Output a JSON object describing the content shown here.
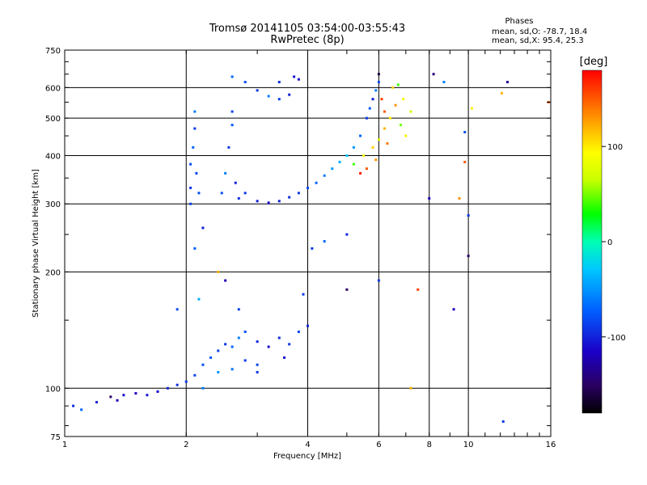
{
  "chart_data": {
    "type": "scatter",
    "title": "Tromsø 20141105 03:54:00-03:55:43",
    "subtitle": "RwPretec (8p)",
    "xlabel": "Frequency [MHz]",
    "ylabel": "Stationary phase Virtual Height [km]",
    "x_scale": "log",
    "y_scale": "log",
    "xlim": [
      1,
      16
    ],
    "ylim": [
      75,
      750
    ],
    "x_ticks": [
      1,
      2,
      4,
      6,
      8,
      10,
      16
    ],
    "x_tick_labels": [
      "1",
      "2",
      "4",
      "6",
      "8",
      "10",
      "16"
    ],
    "y_ticks": [
      75,
      100,
      200,
      300,
      400,
      500,
      600,
      750
    ],
    "y_tick_labels": [
      "75",
      "100",
      "200",
      "300",
      "400",
      "500",
      "600",
      "750"
    ],
    "grid": true,
    "stats": {
      "title": "Phases",
      "line_o": "mean, sd,O: -78.7, 18.4",
      "line_x": "mean, sd,X:  95.4, 25.3"
    },
    "colorbar": {
      "label": "[deg]",
      "range": [
        -180,
        180
      ],
      "ticks": [
        100,
        0,
        -100
      ],
      "tick_labels": [
        "100",
        "0",
        "-100"
      ]
    },
    "series": [
      {
        "note_type": "points",
        "points": [
          [
            1.05,
            90,
            -95
          ],
          [
            1.1,
            88,
            -70
          ],
          [
            1.2,
            92,
            -100
          ],
          [
            1.3,
            95,
            -150
          ],
          [
            1.35,
            93,
            -120
          ],
          [
            1.4,
            96,
            -110
          ],
          [
            1.5,
            97,
            -115
          ],
          [
            1.6,
            96,
            -105
          ],
          [
            1.7,
            98,
            -110
          ],
          [
            1.8,
            100,
            -100
          ],
          [
            1.9,
            102,
            -95
          ],
          [
            2.0,
            104,
            -90
          ],
          [
            2.1,
            108,
            -85
          ],
          [
            2.2,
            115,
            -80
          ],
          [
            2.3,
            120,
            -75
          ],
          [
            2.4,
            125,
            -85
          ],
          [
            2.5,
            130,
            -90
          ],
          [
            2.6,
            128,
            -70
          ],
          [
            2.7,
            135,
            -60
          ],
          [
            2.8,
            140,
            -80
          ],
          [
            3.0,
            132,
            -100
          ],
          [
            3.2,
            128,
            -110
          ],
          [
            3.4,
            135,
            -95
          ],
          [
            3.6,
            130,
            -90
          ],
          [
            3.8,
            140,
            -85
          ],
          [
            4.0,
            145,
            -100
          ],
          [
            2.2,
            100,
            -60
          ],
          [
            2.4,
            110,
            -50
          ],
          [
            2.6,
            112,
            -65
          ],
          [
            2.8,
            118,
            -90
          ],
          [
            3.0,
            115,
            -85
          ],
          [
            3.5,
            120,
            -110
          ],
          [
            2.15,
            170,
            -40
          ],
          [
            2.7,
            160,
            -85
          ],
          [
            3.9,
            175,
            -90
          ],
          [
            2.05,
            300,
            -85
          ],
          [
            2.05,
            330,
            -90
          ],
          [
            2.05,
            380,
            -80
          ],
          [
            2.08,
            420,
            -70
          ],
          [
            2.1,
            470,
            -90
          ],
          [
            2.1,
            520,
            -60
          ],
          [
            2.12,
            360,
            -85
          ],
          [
            2.15,
            320,
            -80
          ],
          [
            2.1,
            230,
            -75
          ],
          [
            2.2,
            260,
            -100
          ],
          [
            2.45,
            320,
            -80
          ],
          [
            2.5,
            360,
            -60
          ],
          [
            2.55,
            420,
            -90
          ],
          [
            2.6,
            480,
            -75
          ],
          [
            2.6,
            520,
            -85
          ],
          [
            2.65,
            340,
            -100
          ],
          [
            2.7,
            310,
            -95
          ],
          [
            2.8,
            320,
            -90
          ],
          [
            3.0,
            305,
            -100
          ],
          [
            3.2,
            302,
            -110
          ],
          [
            3.4,
            305,
            -100
          ],
          [
            3.6,
            312,
            -95
          ],
          [
            3.8,
            320,
            -90
          ],
          [
            4.0,
            330,
            -80
          ],
          [
            4.2,
            340,
            -70
          ],
          [
            4.4,
            355,
            -60
          ],
          [
            4.6,
            370,
            -50
          ],
          [
            4.8,
            385,
            -40
          ],
          [
            5.0,
            400,
            -30
          ],
          [
            5.2,
            420,
            -50
          ],
          [
            5.4,
            450,
            -70
          ],
          [
            5.6,
            500,
            -90
          ],
          [
            5.8,
            560,
            -100
          ],
          [
            6.0,
            620,
            -80
          ],
          [
            5.9,
            590,
            -60
          ],
          [
            5.7,
            530,
            -75
          ],
          [
            2.6,
            640,
            -70
          ],
          [
            2.8,
            620,
            -80
          ],
          [
            3.0,
            590,
            -90
          ],
          [
            3.2,
            570,
            -60
          ],
          [
            3.4,
            560,
            -85
          ],
          [
            3.6,
            575,
            -100
          ],
          [
            3.8,
            630,
            -110
          ],
          [
            3.4,
            620,
            -95
          ],
          [
            3.7,
            640,
            -105
          ],
          [
            5.2,
            380,
            40
          ],
          [
            5.5,
            400,
            90
          ],
          [
            5.8,
            420,
            110
          ],
          [
            6.0,
            440,
            80
          ],
          [
            6.2,
            470,
            120
          ],
          [
            6.4,
            500,
            100
          ],
          [
            6.6,
            540,
            130
          ],
          [
            6.8,
            480,
            50
          ],
          [
            6.3,
            430,
            140
          ],
          [
            6.1,
            560,
            160
          ],
          [
            6.5,
            600,
            110
          ],
          [
            5.9,
            390,
            130
          ],
          [
            5.6,
            370,
            150
          ],
          [
            6.7,
            610,
            40
          ],
          [
            6.9,
            560,
            90
          ],
          [
            7.2,
            520,
            70
          ],
          [
            7.0,
            450,
            100
          ],
          [
            6.2,
            520,
            150
          ],
          [
            5.4,
            360,
            170
          ],
          [
            6.0,
            650,
            -160
          ],
          [
            8.0,
            310,
            -120
          ],
          [
            9.5,
            310,
            130
          ],
          [
            10.0,
            280,
            -90
          ],
          [
            10.0,
            220,
            -150
          ],
          [
            9.8,
            385,
            150
          ],
          [
            9.2,
            160,
            -120
          ],
          [
            7.5,
            180,
            160
          ],
          [
            7.2,
            100,
            120
          ],
          [
            6.0,
            190,
            -90
          ],
          [
            5.0,
            250,
            -100
          ],
          [
            5.0,
            180,
            -150
          ],
          [
            4.4,
            240,
            -70
          ],
          [
            3.0,
            110,
            -90
          ],
          [
            2.5,
            190,
            -120
          ],
          [
            2.4,
            200,
            120
          ],
          [
            8.7,
            620,
            -60
          ],
          [
            12.1,
            580,
            120
          ],
          [
            12.5,
            620,
            -130
          ],
          [
            12.2,
            82,
            -90
          ],
          [
            15.8,
            550,
            150
          ],
          [
            10.2,
            530,
            100
          ],
          [
            9.8,
            460,
            -80
          ],
          [
            8.2,
            650,
            -140
          ],
          [
            1.9,
            160,
            -80
          ],
          [
            4.1,
            230,
            -90
          ]
        ]
      }
    ]
  }
}
